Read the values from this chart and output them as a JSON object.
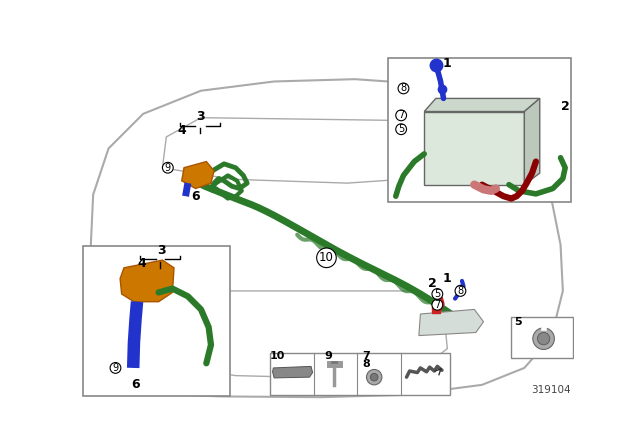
{
  "bg_color": "#ffffff",
  "car_outline_color": "#aaaaaa",
  "cable_green": "#2a7a2a",
  "cable_dark_red": "#8b0000",
  "cable_pink": "#cc8888",
  "cable_blue": "#2233cc",
  "cable_orange": "#cc7700",
  "box_border": "#999999",
  "part_id": "319104",
  "callout_r": 7
}
